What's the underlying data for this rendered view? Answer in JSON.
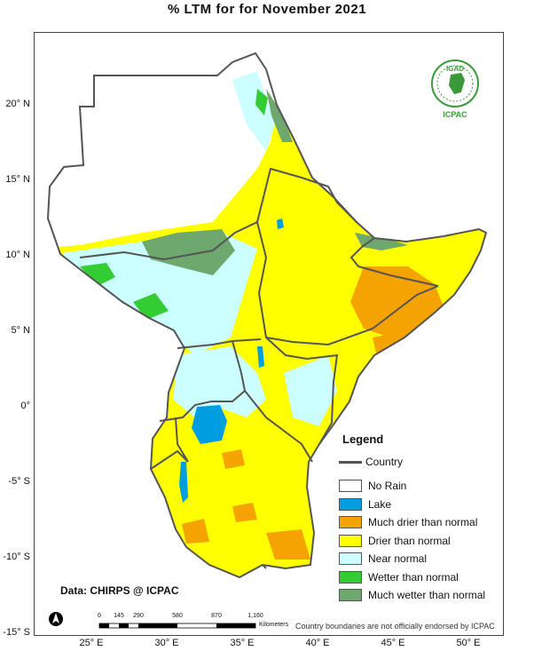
{
  "title": "% LTM for  for  November 2021",
  "lat_labels": [
    {
      "text": "20° N",
      "lat": 20
    },
    {
      "text": "15° N",
      "lat": 15
    },
    {
      "text": "10° N",
      "lat": 10
    },
    {
      "text": "5° N",
      "lat": 5
    },
    {
      "text": "0°",
      "lat": 0
    },
    {
      "text": "-5° S",
      "lat": -5
    },
    {
      "text": "-10° S",
      "lat": -10
    },
    {
      "text": "-15° S",
      "lat": -15
    }
  ],
  "lon_labels": [
    {
      "text": "25° E",
      "lon": 25
    },
    {
      "text": "30° E",
      "lon": 30
    },
    {
      "text": "35° E",
      "lon": 35
    },
    {
      "text": "40° E",
      "lon": 40
    },
    {
      "text": "45° E",
      "lon": 45
    },
    {
      "text": "50° E",
      "lon": 50
    }
  ],
  "legend": {
    "title": "Legend",
    "country_label": "Country",
    "items": [
      {
        "label": "No Rain",
        "color": "#ffffff"
      },
      {
        "label": "Lake",
        "color": "#009ee0"
      },
      {
        "label": "Much drier than normal",
        "color": "#f5a300"
      },
      {
        "label": "Drier than normal",
        "color": "#ffff00"
      },
      {
        "label": "Near normal",
        "color": "#ccffff"
      },
      {
        "label": "Wetter than normal",
        "color": "#33cc33"
      },
      {
        "label": "Much wetter than normal",
        "color": "#6ea86e"
      }
    ]
  },
  "credit": "Data: CHIRPS @ ICPAC",
  "disclaimer": "Country boundaries are not officially endorsed by ICPAC",
  "scale_bar": {
    "ticks": [
      "0",
      "145",
      "290",
      "580",
      "870",
      "1,160"
    ],
    "unit": "Kilometers"
  },
  "logo": {
    "top_text": "IGAD",
    "bottom_text": "ICPAC"
  },
  "north_arrow": "north-arrow-icon"
}
